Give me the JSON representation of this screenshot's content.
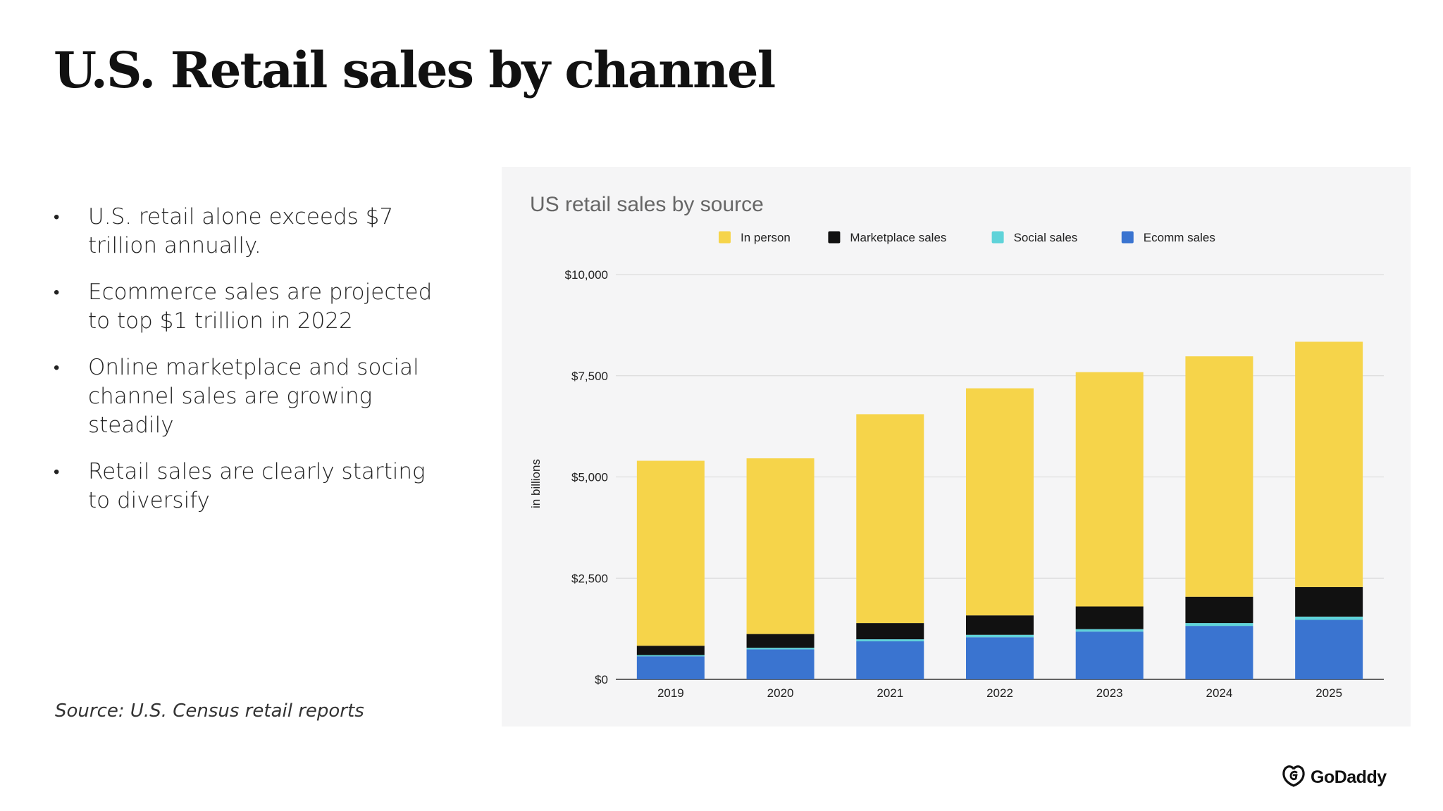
{
  "slide": {
    "title": "U.S. Retail sales by channel",
    "bullets": [
      "U.S. retail alone exceeds $7 trillion annually.",
      "Ecommerce sales are projected to top $1 trillion in 2022",
      "Online marketplace and social channel sales are growing steadily",
      "Retail sales are clearly starting to diversify"
    ],
    "bullet_marker": "•",
    "source": "Source: U.S. Census retail reports",
    "logo_text": "GoDaddy",
    "logo_icon": "godaddy-logo-icon"
  },
  "colors": {
    "in_person": "#f6d44a",
    "marketplace": "#111111",
    "social": "#5fd3d9",
    "ecomm": "#3a74d0",
    "panel_bg": "#f5f5f6",
    "grid": "#d6d6d6"
  },
  "chart_data": {
    "type": "bar",
    "stacked": true,
    "title": "US retail sales by source",
    "ylabel": "in billions",
    "xlabel": "",
    "categories": [
      "2019",
      "2020",
      "2021",
      "2022",
      "2023",
      "2024",
      "2025"
    ],
    "series": [
      {
        "name": "Ecomm sales",
        "color": "#3a74d0",
        "values": [
          570,
          740,
          940,
          1040,
          1180,
          1320,
          1470
        ]
      },
      {
        "name": "Social sales",
        "color": "#5fd3d9",
        "values": [
          30,
          40,
          50,
          60,
          60,
          70,
          80
        ]
      },
      {
        "name": "Marketplace sales",
        "color": "#111111",
        "values": [
          230,
          340,
          400,
          480,
          560,
          650,
          730
        ]
      },
      {
        "name": "In person",
        "color": "#f6d44a",
        "values": [
          4570,
          4340,
          5160,
          5610,
          5790,
          5940,
          6060
        ]
      }
    ],
    "legend_order": [
      "In person",
      "Marketplace sales",
      "Social sales",
      "Ecomm sales"
    ],
    "legend_position": "top",
    "yticks": [
      0,
      2500,
      5000,
      7500,
      10000
    ],
    "ytick_labels": [
      "$0",
      "$2,500",
      "$5,000",
      "$7,500",
      "$10,000"
    ],
    "ylim": [
      0,
      10000
    ],
    "grid": true
  }
}
